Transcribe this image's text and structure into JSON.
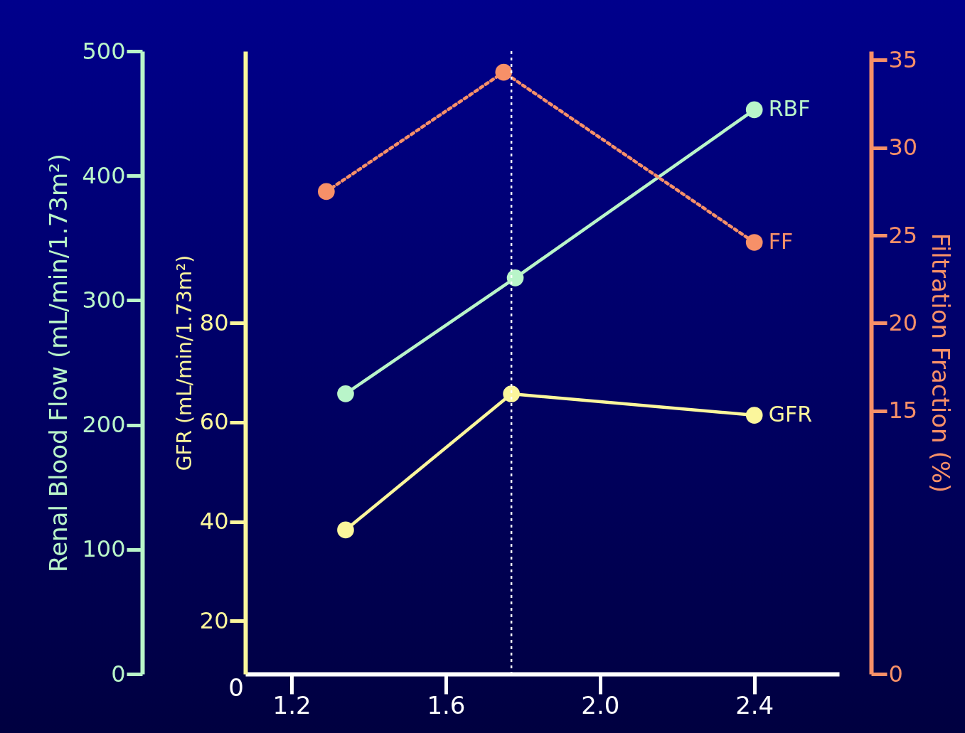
{
  "chart_data": {
    "type": "line",
    "ylabel": "Renal Blood Flow (mL/min/1.73m²)",
    "y2label": "Filtration Fraction (%)",
    "y3label": "GFR (mL/min/1.73m²)",
    "xlim": [
      1.08,
      2.62
    ],
    "xticks": [
      1.2,
      1.6,
      {
        "value": 2,
        "label": "2.0"
      },
      2.4
    ],
    "annotations": [
      "0"
    ],
    "ylim": [
      0,
      500
    ],
    "yticks": [
      0,
      100,
      200,
      300,
      400,
      500
    ],
    "y2lim": [
      0,
      35.5
    ],
    "y2ticks": [
      0,
      15,
      20,
      25,
      30,
      35
    ],
    "y3lim": [
      9.3,
      134.7
    ],
    "y3ticks": [
      20,
      40,
      60,
      80
    ],
    "marker": "circle",
    "grid": false,
    "series": [
      {
        "name": "RBF",
        "color": "#b9f5c9",
        "x": [
          1.34,
          1.78,
          2.4
        ],
        "values": [
          225,
          318,
          453
        ],
        "line_style": "solid"
      },
      {
        "name": "GFR",
        "color": "#fbf69c",
        "x": [
          1.34,
          1.77,
          2.4
        ],
        "values": [
          38.3,
          65.7,
          61.4
        ],
        "axis": "y3",
        "line_style": "solid"
      },
      {
        "name": "FF",
        "color": "#f79068",
        "x": [
          1.29,
          1.75,
          2.4
        ],
        "values": [
          27.5,
          34.3,
          24.6
        ],
        "axis": "y2",
        "line_style": "dotted"
      }
    ],
    "ref_lines": [
      {
        "axis": "x",
        "value": 1.77,
        "color": "#ffffff",
        "line_style": "dotted"
      }
    ]
  }
}
